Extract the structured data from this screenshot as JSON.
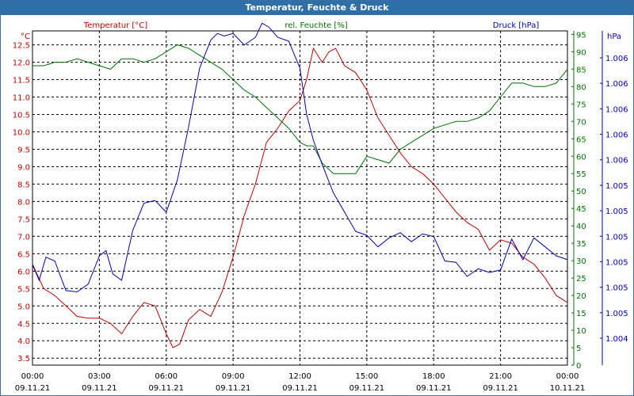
{
  "window": {
    "title": "Temperatur, Feuchte & Druck"
  },
  "chart_data": {
    "type": "line",
    "title": "Temperatur, Feuchte & Druck",
    "x_ticks": [
      {
        "time": "00:00",
        "date": "09.11.21"
      },
      {
        "time": "03:00",
        "date": "09.11.21"
      },
      {
        "time": "06:00",
        "date": "09.11.21"
      },
      {
        "time": "09:00",
        "date": "09.11.21"
      },
      {
        "time": "12:00",
        "date": "09.11.21"
      },
      {
        "time": "15:00",
        "date": "09.11.21"
      },
      {
        "time": "18:00",
        "date": "09.11.21"
      },
      {
        "time": "21:00",
        "date": "09.11.21"
      },
      {
        "time": "00:00",
        "date": "10.11.21"
      }
    ],
    "xlim_hours": [
      0,
      24
    ],
    "grid": true,
    "colors": {
      "temperature": "#c00000",
      "humidity": "#007000",
      "pressure": "#0000b0",
      "title_bar": "#2f6fa8"
    },
    "axes": {
      "temperature": {
        "label": "Temperatur [°C]",
        "unit": "°C",
        "ylim": [
          3.3,
          12.9
        ],
        "ticks": [
          "3.5",
          "4.0",
          "4.5",
          "5.0",
          "5.5",
          "6.0",
          "6.5",
          "7.0",
          "7.5",
          "8.0",
          "8.5",
          "9.0",
          "9.5",
          "10.0",
          "10.5",
          "11.0",
          "11.5",
          "12.0",
          "12.5"
        ]
      },
      "humidity": {
        "label": "rel. Feuchte [%]",
        "unit": "%",
        "ylim": [
          0,
          96
        ],
        "ticks": [
          "0",
          "5",
          "10",
          "15",
          "20",
          "25",
          "30",
          "35",
          "40",
          "45",
          "50",
          "55",
          "60",
          "65",
          "70",
          "75",
          "80",
          "85",
          "90",
          "95"
        ]
      },
      "pressure": {
        "label": "Druck [hPa]",
        "unit": "hPa",
        "tick_labels": [
          "1.004",
          "1.005",
          "1.005",
          "1.005",
          "1.005",
          "1.005",
          "1.005",
          "1.006",
          "1.006",
          "1.006",
          "1.006",
          "1.006"
        ]
      }
    },
    "series": [
      {
        "name": "Temperatur [°C]",
        "axis": "temperature",
        "x": [
          0,
          0.5,
          1,
          1.5,
          2,
          2.5,
          3,
          3.5,
          4,
          4.5,
          5,
          5.5,
          6,
          6.3,
          6.6,
          7,
          7.5,
          8,
          8.5,
          9,
          9.5,
          10,
          10.5,
          11,
          11.5,
          12,
          12.3,
          12.6,
          13,
          13.3,
          13.6,
          14,
          14.5,
          15,
          15.5,
          16,
          16.5,
          17,
          17.5,
          18,
          18.5,
          19,
          19.5,
          20,
          20.5,
          21,
          21.5,
          22,
          22.5,
          23,
          23.5,
          24
        ],
        "values": [
          6.2,
          5.5,
          5.3,
          5.0,
          4.7,
          4.65,
          4.65,
          4.5,
          4.2,
          4.7,
          5.1,
          5.0,
          4.2,
          3.8,
          3.9,
          4.6,
          4.9,
          4.7,
          5.4,
          6.4,
          7.6,
          8.5,
          9.7,
          10.1,
          10.6,
          10.9,
          11.5,
          12.4,
          12.0,
          12.3,
          12.4,
          11.9,
          11.7,
          11.2,
          10.4,
          9.9,
          9.4,
          9.0,
          8.8,
          8.5,
          8.1,
          7.7,
          7.4,
          7.2,
          6.6,
          6.9,
          6.8,
          6.4,
          6.2,
          5.8,
          5.3,
          5.1
        ]
      },
      {
        "name": "rel. Feuchte [%]",
        "axis": "humidity",
        "x": [
          0,
          0.5,
          1,
          1.5,
          2,
          2.5,
          3,
          3.5,
          4,
          4.5,
          5,
          5.5,
          6,
          6.5,
          7,
          7.5,
          8,
          8.5,
          9,
          9.5,
          10,
          10.5,
          11,
          11.5,
          12,
          12.3,
          12.6,
          13,
          13.5,
          14,
          14.5,
          15,
          15.5,
          16,
          16.5,
          17,
          17.5,
          18,
          18.5,
          19,
          19.5,
          20,
          20.5,
          21,
          21.5,
          22,
          22.5,
          23,
          23.5,
          24
        ],
        "values": [
          86,
          86,
          87,
          87,
          88,
          87,
          86,
          85,
          88,
          88,
          87,
          88,
          90,
          92,
          91,
          89,
          87,
          85,
          82,
          79,
          77,
          74,
          71,
          68,
          64,
          63,
          63,
          58,
          55,
          55,
          55,
          60,
          59,
          58,
          62,
          64,
          66,
          68,
          69,
          70,
          70,
          71,
          73,
          77,
          81,
          81,
          80,
          80,
          81,
          85
        ]
      },
      {
        "name": "Druck [hPa]",
        "axis": "pressure",
        "ylim": [
          1.0037,
          1.0063
        ],
        "x": [
          0,
          0.3,
          0.6,
          1,
          1.5,
          2,
          2.5,
          3,
          3.3,
          3.6,
          4,
          4.5,
          5,
          5.5,
          6,
          6.5,
          7,
          7.5,
          8,
          8.3,
          8.6,
          9,
          9.5,
          10,
          10.3,
          10.6,
          11,
          11.5,
          12,
          12.3,
          12.6,
          13,
          13.5,
          14,
          14.5,
          15,
          15.5,
          16,
          16.5,
          17,
          17.5,
          18,
          18.5,
          19,
          19.5,
          20,
          20.5,
          21,
          21.5,
          22,
          22.5,
          23,
          23.5,
          24
        ],
        "values": [
          1.00448,
          1.00436,
          1.00454,
          1.00451,
          1.00428,
          1.00427,
          1.00433,
          1.00455,
          1.00459,
          1.00441,
          1.00436,
          1.00475,
          1.00496,
          1.00498,
          1.00489,
          1.00514,
          1.00555,
          1.00601,
          1.00623,
          1.00628,
          1.00626,
          1.00628,
          1.00619,
          1.00625,
          1.00636,
          1.00633,
          1.00625,
          1.00622,
          1.00601,
          1.00565,
          1.00545,
          1.00526,
          1.00504,
          1.00489,
          1.00474,
          1.00471,
          1.00462,
          1.00469,
          1.00473,
          1.00466,
          1.00472,
          1.0047,
          1.00451,
          1.0045,
          1.00439,
          1.00445,
          1.00442,
          1.00444,
          1.00468,
          1.00452,
          1.00469,
          1.00462,
          1.00455,
          1.00452
        ]
      }
    ]
  }
}
